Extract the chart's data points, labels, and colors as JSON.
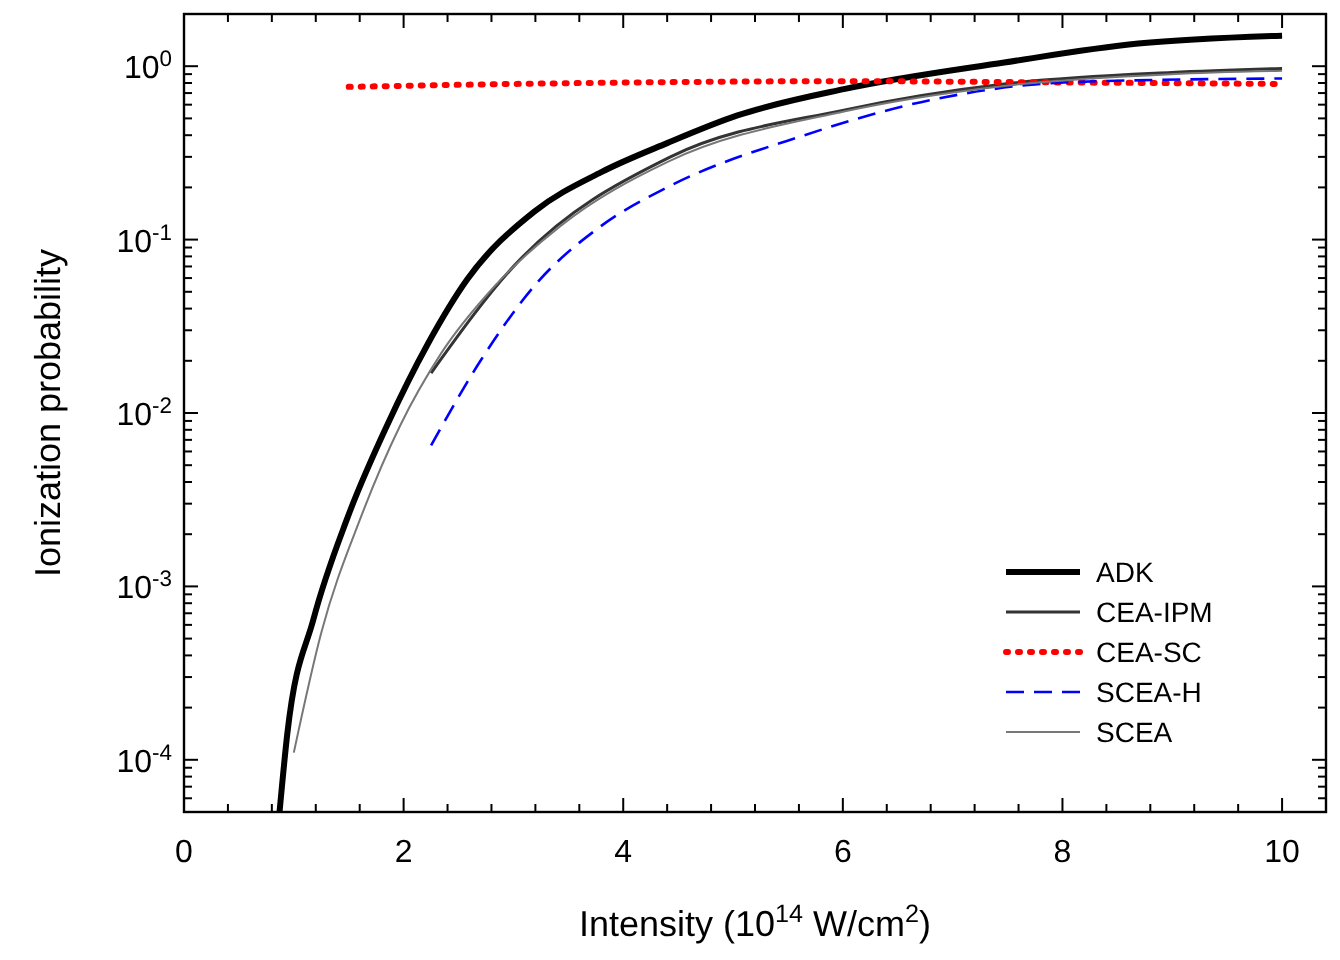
{
  "chart_data": {
    "type": "line",
    "xlabel": "Intensity (10$^{14}$ W/cm$^{2}$)",
    "ylabel": "Ionization probability",
    "log": "y",
    "grid": false,
    "legend": "bottom right",
    "xlim": [
      0,
      10.4
    ],
    "xticks": [
      0,
      2,
      4,
      6,
      8,
      10
    ],
    "ylim": [
      5e-05,
      2
    ],
    "yticks": [
      {
        "value": 0.0001,
        "label": "10$^{-4}$"
      },
      {
        "value": 0.001,
        "label": "10$^{-3}$"
      },
      {
        "value": 0.01,
        "label": "10$^{-2}$"
      },
      {
        "value": 0.1,
        "label": "10$^{-1}$"
      },
      {
        "value": 1,
        "label": "10$^{0}$"
      }
    ],
    "series": [
      {
        "name": "ADK",
        "color": "#000000",
        "line_style": "solid",
        "x": [
          0.87,
          0.94,
          1.18,
          1.49,
          1.85,
          2.22,
          2.58,
          3.19,
          3.8,
          4.4,
          5.04,
          6.02,
          7.47,
          8.69,
          10
        ],
        "values": [
          5e-05,
          0.00014,
          0.00065,
          0.0025,
          0.0085,
          0.025,
          0.059,
          0.145,
          0.245,
          0.36,
          0.52,
          0.74,
          1.05,
          1.35,
          1.5
        ]
      },
      {
        "name": "CEA-IPM",
        "color": "#333333",
        "line_style": "solid",
        "x": [
          2.25,
          3.01,
          4.43,
          6.02,
          7.47,
          8.99,
          10
        ],
        "values": [
          0.017,
          0.071,
          0.3,
          0.56,
          0.79,
          0.92,
          0.97
        ]
      },
      {
        "name": "CEA-SC",
        "color": "#ff0000",
        "line_style": "dotted",
        "x": [
          1.5,
          3,
          4.5,
          6,
          7.5,
          10
        ],
        "values": [
          0.76,
          0.79,
          0.81,
          0.82,
          0.81,
          0.79
        ]
      },
      {
        "name": "SCEA-H",
        "color": "#0000ff",
        "line_style": "dashed",
        "x": [
          2.25,
          2.7,
          3.19,
          3.8,
          4.4,
          5.65,
          6.86,
          8.08,
          10
        ],
        "values": [
          0.0065,
          0.02,
          0.054,
          0.12,
          0.2,
          0.4,
          0.65,
          0.81,
          0.85
        ]
      },
      {
        "name": "SCEA",
        "color": "#777777",
        "line_style": "solid",
        "x": [
          1.0,
          1.25,
          1.61,
          1.97,
          2.34,
          2.83,
          3.43,
          4.4,
          6.02,
          7.47,
          8.99,
          10
        ],
        "values": [
          0.00011,
          0.00054,
          0.0025,
          0.0085,
          0.022,
          0.054,
          0.12,
          0.28,
          0.55,
          0.77,
          0.9,
          0.94
        ]
      }
    ]
  }
}
